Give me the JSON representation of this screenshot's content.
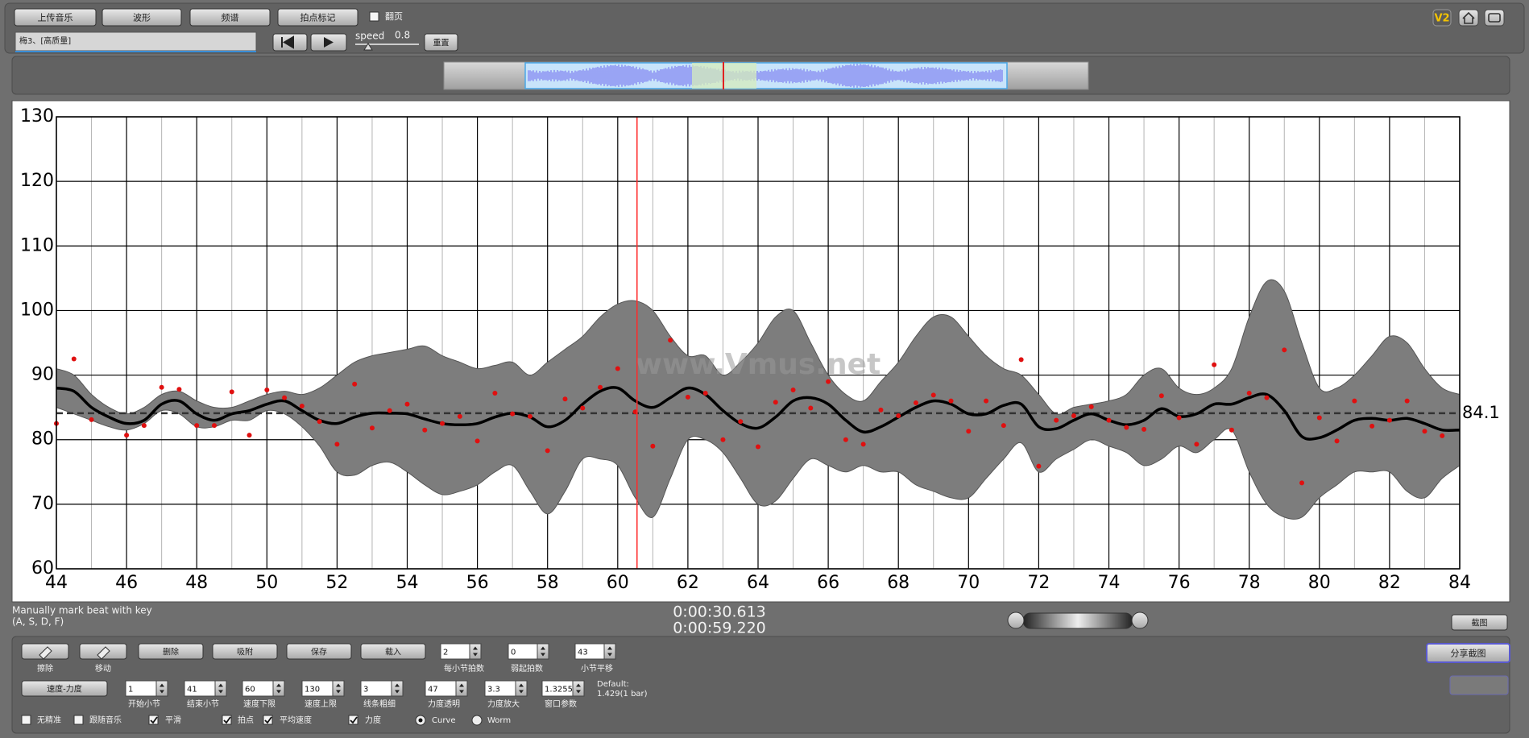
{
  "toolbar": {
    "buttons": [
      "上传音乐",
      "波形",
      "频谱",
      "拍点标记"
    ],
    "page_flip": "翻页",
    "track": "梅3、[高质量]",
    "speed_label": "speed",
    "speed_value": 0.8,
    "reset": "重置",
    "version": "V2"
  },
  "chart_data": {
    "type": "line",
    "xlim": [
      44,
      84
    ],
    "ylim": [
      60,
      130
    ],
    "xticks": [
      44,
      46,
      48,
      50,
      52,
      54,
      56,
      58,
      60,
      62,
      64,
      66,
      68,
      70,
      72,
      74,
      76,
      78,
      80,
      82,
      84
    ],
    "minor_xticks": [
      45,
      47,
      49,
      51,
      53,
      55,
      57,
      59,
      61,
      63,
      65,
      67,
      69,
      71,
      73,
      75,
      77,
      79,
      81,
      83
    ],
    "yticks": [
      60,
      70,
      80,
      90,
      100,
      110,
      120,
      130
    ],
    "grid": true,
    "x": [
      44,
      44.5,
      45,
      45.5,
      46,
      46.5,
      47,
      47.5,
      48,
      48.5,
      49,
      49.5,
      50,
      50.5,
      51,
      51.5,
      52,
      52.5,
      53,
      53.5,
      54,
      54.5,
      55,
      55.5,
      56,
      56.5,
      57,
      57.5,
      58,
      58.5,
      59,
      59.5,
      60,
      60.5,
      61,
      61.5,
      62,
      62.5,
      63,
      63.5,
      64,
      64.5,
      65,
      65.5,
      66,
      66.5,
      67,
      67.5,
      68,
      68.5,
      69,
      69.5,
      70,
      70.5,
      71,
      71.5,
      72,
      72.5,
      73,
      73.5,
      74,
      74.5,
      75,
      75.5,
      76,
      76.5,
      77,
      77.5,
      78,
      78.5,
      79,
      79.5,
      80,
      80.5,
      81,
      81.5,
      82,
      82.5,
      83,
      83.5,
      84
    ],
    "band": {
      "color": "#7d7d7d",
      "upper": [
        91,
        90,
        87,
        85,
        84,
        85,
        87,
        87.5,
        86,
        85,
        85,
        86,
        87,
        87.5,
        87,
        88,
        90,
        92,
        93,
        93.5,
        94,
        94.5,
        93,
        92,
        91,
        91.5,
        92,
        90,
        92,
        94,
        96,
        99,
        101,
        101.5,
        100,
        96,
        93,
        93,
        90,
        92,
        95,
        99,
        100,
        95,
        90,
        87,
        86,
        89,
        92,
        96,
        99,
        99,
        96,
        93,
        91,
        90,
        87,
        84,
        85,
        85.5,
        86,
        87,
        90,
        91,
        88,
        87,
        88,
        91,
        99,
        104.5,
        103,
        95,
        88,
        88,
        90,
        93,
        96,
        95,
        91,
        88,
        87
      ],
      "lower": [
        85,
        84,
        83,
        82,
        81.5,
        82.5,
        84.5,
        84,
        82,
        82,
        83,
        83,
        84.5,
        84,
        82,
        79,
        75,
        74.5,
        76,
        76.5,
        75,
        73,
        71.5,
        72,
        73,
        75,
        76,
        72,
        68.5,
        72,
        77,
        77,
        76,
        71,
        68,
        74,
        80,
        80,
        78,
        74,
        70,
        70.5,
        74,
        77,
        76,
        75,
        76,
        75,
        75,
        73,
        72,
        71,
        71,
        74,
        77,
        79.5,
        75,
        77,
        78.5,
        80,
        79,
        78,
        76,
        77,
        79,
        78,
        80,
        81.5,
        75,
        70,
        68,
        68,
        71,
        73,
        75,
        75,
        75,
        72,
        71,
        74,
        76
      ]
    },
    "curve": {
      "color": "#000000",
      "values": [
        88,
        87.5,
        85,
        83.5,
        82.5,
        83,
        85.5,
        86,
        84,
        83,
        84,
        84.5,
        85.5,
        86,
        84.5,
        83,
        82.5,
        83.5,
        84.1,
        84.1,
        84,
        83.2,
        82.5,
        82.3,
        82.5,
        83.5,
        84.1,
        83.5,
        82,
        83,
        85.5,
        87.5,
        88,
        86,
        85,
        86.5,
        88,
        87,
        84.5,
        82.5,
        81.8,
        83.5,
        86,
        86.5,
        85.5,
        83,
        81.2,
        82,
        83.5,
        85,
        86,
        85.5,
        84,
        84,
        85.3,
        85.5,
        82,
        81.7,
        83,
        84,
        83,
        82.3,
        83,
        84.8,
        83.6,
        84,
        85.5,
        85.5,
        86.5,
        87,
        84.5,
        80.5,
        80.3,
        81.5,
        83,
        83.3,
        83,
        83.3,
        82.5,
        81.5,
        81.5
      ]
    },
    "points": {
      "color": "#e01010",
      "x": [
        44,
        44.5,
        45,
        46,
        46.5,
        47,
        47.5,
        48,
        48.5,
        49,
        49.5,
        50,
        50.5,
        51,
        51.5,
        52,
        52.5,
        53,
        53.5,
        54,
        54.5,
        55,
        55.5,
        56,
        56.5,
        57,
        57.5,
        58,
        58.5,
        59,
        59.5,
        60,
        60.5,
        61,
        61.5,
        62,
        62.5,
        63,
        63.5,
        64,
        64.5,
        65,
        65.5,
        66,
        66.5,
        67,
        67.5,
        68,
        68.5,
        69,
        69.5,
        70,
        70.5,
        71,
        71.5,
        72,
        72.5,
        73,
        73.5,
        74,
        74.5,
        75,
        75.5,
        76,
        76.5,
        77,
        77.5,
        78,
        78.5,
        79,
        79.5,
        80,
        80.5,
        81,
        81.5,
        82,
        82.5,
        83,
        83.5
      ],
      "values": [
        82.5,
        92.5,
        83.1,
        80.7,
        82.2,
        88.1,
        87.8,
        82.2,
        82.2,
        87.4,
        80.7,
        87.7,
        86.5,
        85.2,
        82.8,
        79.3,
        88.6,
        81.8,
        84.5,
        85.5,
        81.5,
        82.5,
        83.6,
        79.8,
        87.2,
        84,
        83.6,
        78.3,
        86.3,
        84.9,
        88.1,
        91,
        84.3,
        79,
        95.4,
        86.6,
        87.2,
        80,
        82.8,
        78.9,
        85.8,
        87.7,
        84.9,
        89,
        80,
        79.3,
        84.6,
        83.7,
        85.7,
        86.9,
        86,
        81.3,
        86,
        82.2,
        92.4,
        75.9,
        83,
        83.7,
        85.1,
        83,
        81.9,
        81.6,
        86.8,
        83.4,
        79.3,
        91.6,
        81.5,
        87.2,
        86.5,
        93.9,
        73.3,
        83.4,
        79.8,
        86,
        82.1,
        83,
        86,
        81.3,
        80.6
      ]
    },
    "mean": {
      "value": 84.1,
      "color": "#333333"
    },
    "cursor": {
      "x": 60.55,
      "color": "#ff2a2a"
    },
    "watermark": "www.Vmus.net"
  },
  "status": {
    "hint": [
      "Manually mark beat with key",
      "(A, S, D, F)"
    ],
    "time_current": "0:00:30.613",
    "time_total": "0:00:59.220",
    "screenshot": "截图"
  },
  "controls": {
    "tools": [
      "擦除",
      "移动"
    ],
    "buttons": [
      "删除",
      "吸附",
      "保存",
      "载入"
    ],
    "mode": "速度-力度",
    "fields_top": [
      {
        "label": "每小节拍数",
        "value": 2
      },
      {
        "label": "弱起拍数",
        "value": 0
      },
      {
        "label": "小节平移",
        "value": 43
      }
    ],
    "fields": [
      {
        "label": "开始小节",
        "value": 1
      },
      {
        "label": "结束小节",
        "value": 41
      },
      {
        "label": "速度下限",
        "value": 60
      },
      {
        "label": "速度上限",
        "value": 130
      },
      {
        "label": "线条粗细",
        "value": 3
      },
      {
        "label": "力度透明",
        "value": 47
      },
      {
        "label": "力度放大",
        "value": 3.3
      },
      {
        "label": "窗口参数",
        "value": 1.3255
      }
    ],
    "default_note": [
      "Default:",
      "1.429(1 bar)"
    ],
    "checks": [
      {
        "label": "无精准",
        "checked": false
      },
      {
        "label": "跟随音乐",
        "checked": false
      },
      {
        "label": "平滑",
        "checked": true
      },
      {
        "label": "拍点",
        "checked": true
      },
      {
        "label": "平均速度",
        "checked": true
      },
      {
        "label": "力度",
        "checked": true
      }
    ],
    "radios": [
      {
        "label": "Curve",
        "selected": true
      },
      {
        "label": "Worm",
        "selected": false
      }
    ],
    "share": "分享截图"
  }
}
